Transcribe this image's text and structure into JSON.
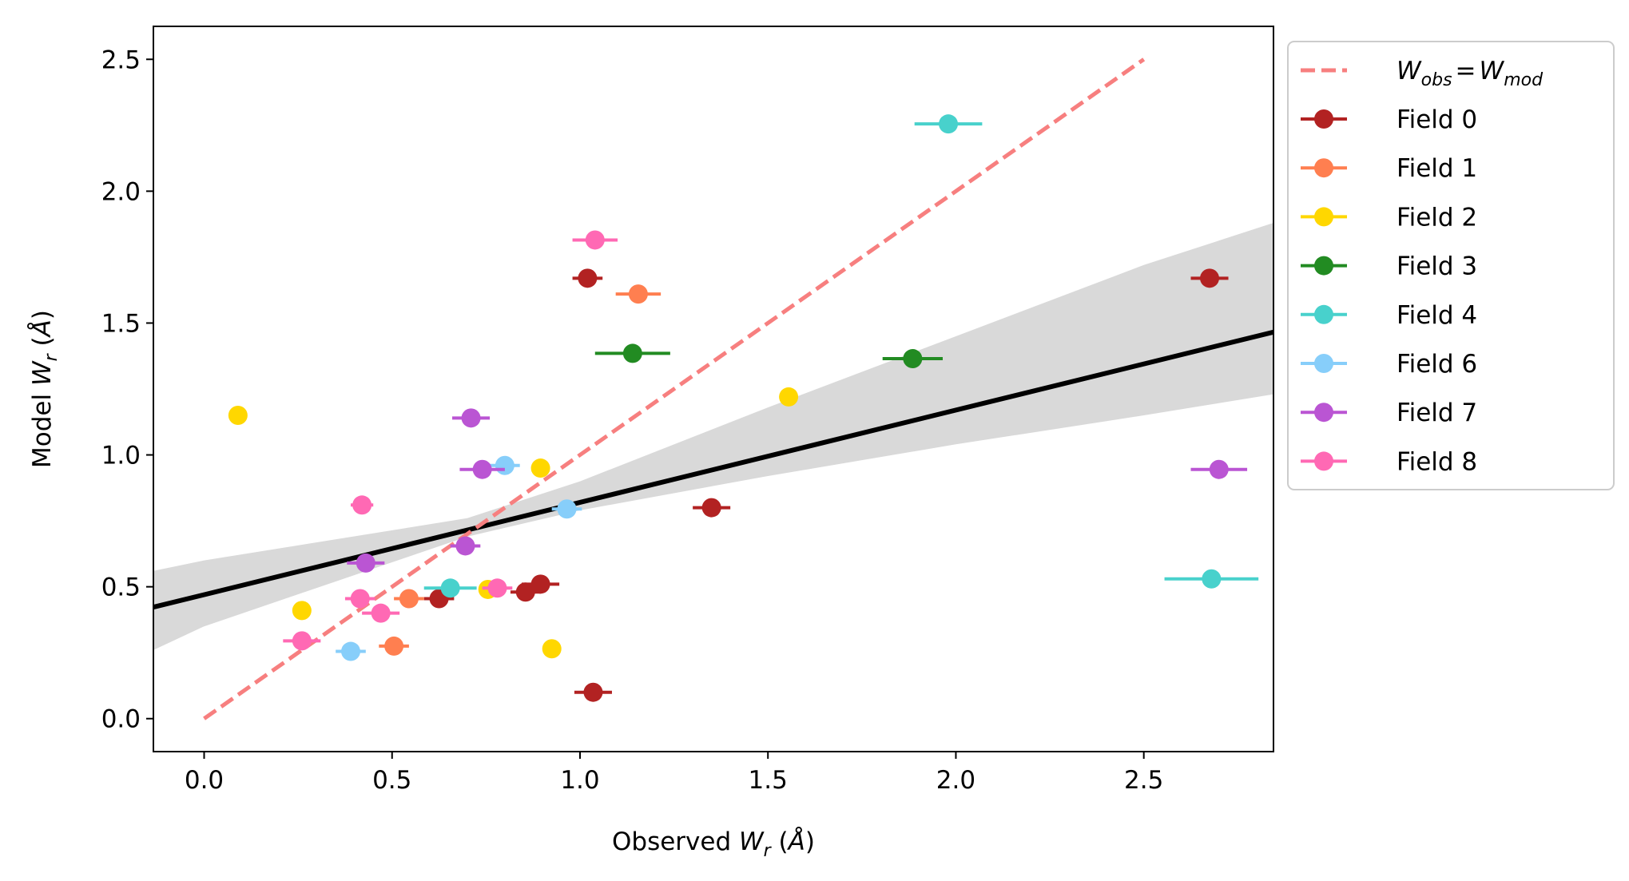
{
  "chart_data": {
    "type": "scatter",
    "title": "",
    "xlabel": "Observed W_r (Å)",
    "ylabel": "Model W_r (Å)",
    "xlim": [
      -0.135,
      2.845
    ],
    "ylim": [
      -0.125,
      2.625
    ],
    "xticks": [
      0.0,
      0.5,
      1.0,
      1.5,
      2.0,
      2.5
    ],
    "yticks": [
      0.0,
      0.5,
      1.0,
      1.5,
      2.0,
      2.5
    ],
    "xtick_labels": [
      "0.0",
      "0.5",
      "1.0",
      "1.5",
      "2.0",
      "2.5"
    ],
    "ytick_labels": [
      "0.0",
      "0.5",
      "1.0",
      "1.5",
      "2.0",
      "2.5"
    ],
    "grid": false,
    "legend_position": "outside-right",
    "identity_line": {
      "label_main1": "W",
      "label_sub1": "obs",
      "label_eq": "=",
      "label_main2": "W",
      "label_sub2": "mod",
      "x": [
        0.0,
        2.5
      ],
      "y": [
        0.0,
        2.5
      ],
      "color": "#f77f7f"
    },
    "fit": {
      "intercept": 0.47,
      "slope": 0.35,
      "color": "#000000",
      "band_upper": [
        [
          -0.135,
          0.56
        ],
        [
          0.0,
          0.6
        ],
        [
          0.7,
          0.76
        ],
        [
          1.0,
          0.9
        ],
        [
          1.5,
          1.18
        ],
        [
          2.0,
          1.45
        ],
        [
          2.5,
          1.72
        ],
        [
          2.845,
          1.88
        ]
      ],
      "band_lower": [
        [
          -0.135,
          0.26
        ],
        [
          0.0,
          0.35
        ],
        [
          0.7,
          0.69
        ],
        [
          1.0,
          0.79
        ],
        [
          1.5,
          0.92
        ],
        [
          2.0,
          1.04
        ],
        [
          2.5,
          1.15
        ],
        [
          2.845,
          1.23
        ]
      ],
      "band_color": "#d9d9d9"
    },
    "series": [
      {
        "name": "Field 0",
        "color": "#b22222",
        "points": [
          {
            "x": 1.02,
            "y": 1.67,
            "xerr": 0.04
          },
          {
            "x": 1.35,
            "y": 0.8,
            "xerr": 0.05
          },
          {
            "x": 0.625,
            "y": 0.455,
            "xerr": 0.04
          },
          {
            "x": 0.855,
            "y": 0.48,
            "xerr": 0.04
          },
          {
            "x": 0.895,
            "y": 0.51,
            "xerr": 0.05
          },
          {
            "x": 1.035,
            "y": 0.1,
            "xerr": 0.05
          },
          {
            "x": 2.675,
            "y": 1.67,
            "xerr": 0.05
          }
        ]
      },
      {
        "name": "Field 1",
        "color": "#ff7f50",
        "points": [
          {
            "x": 1.155,
            "y": 1.61,
            "xerr": 0.06
          },
          {
            "x": 0.545,
            "y": 0.455,
            "xerr": 0.04
          },
          {
            "x": 0.505,
            "y": 0.275,
            "xerr": 0.04
          }
        ]
      },
      {
        "name": "Field 2",
        "color": "#ffd700",
        "points": [
          {
            "x": 0.09,
            "y": 1.15,
            "xerr": 0.0
          },
          {
            "x": 1.555,
            "y": 1.22,
            "xerr": 0.0
          },
          {
            "x": 0.895,
            "y": 0.95,
            "xerr": 0.0
          },
          {
            "x": 0.26,
            "y": 0.41,
            "xerr": 0.0
          },
          {
            "x": 0.755,
            "y": 0.49,
            "xerr": 0.0
          },
          {
            "x": 0.925,
            "y": 0.265,
            "xerr": 0.0
          }
        ]
      },
      {
        "name": "Field 3",
        "color": "#228b22",
        "points": [
          {
            "x": 1.14,
            "y": 1.385,
            "xerr": 0.1
          },
          {
            "x": 1.885,
            "y": 1.365,
            "xerr": 0.08
          }
        ]
      },
      {
        "name": "Field 4",
        "color": "#48d1cc",
        "points": [
          {
            "x": 1.98,
            "y": 2.255,
            "xerr": 0.09
          },
          {
            "x": 0.655,
            "y": 0.495,
            "xerr": 0.07
          },
          {
            "x": 2.68,
            "y": 0.53,
            "xerr": 0.125
          }
        ]
      },
      {
        "name": "Field 6",
        "color": "#87cefa",
        "points": [
          {
            "x": 0.8,
            "y": 0.96,
            "xerr": 0.04
          },
          {
            "x": 0.965,
            "y": 0.795,
            "xerr": 0.04
          },
          {
            "x": 0.39,
            "y": 0.255,
            "xerr": 0.04
          }
        ]
      },
      {
        "name": "Field 7",
        "color": "#ba55d3",
        "points": [
          {
            "x": 0.71,
            "y": 1.14,
            "xerr": 0.05
          },
          {
            "x": 0.74,
            "y": 0.945,
            "xerr": 0.06
          },
          {
            "x": 0.695,
            "y": 0.655,
            "xerr": 0.04
          },
          {
            "x": 0.43,
            "y": 0.59,
            "xerr": 0.05
          },
          {
            "x": 2.7,
            "y": 0.945,
            "xerr": 0.075
          }
        ]
      },
      {
        "name": "Field 8",
        "color": "#ff69b4",
        "points": [
          {
            "x": 1.04,
            "y": 1.815,
            "xerr": 0.06
          },
          {
            "x": 0.42,
            "y": 0.81,
            "xerr": 0.03
          },
          {
            "x": 0.415,
            "y": 0.455,
            "xerr": 0.04
          },
          {
            "x": 0.47,
            "y": 0.4,
            "xerr": 0.05
          },
          {
            "x": 0.26,
            "y": 0.295,
            "xerr": 0.05
          },
          {
            "x": 0.78,
            "y": 0.495,
            "xerr": 0.04
          }
        ]
      }
    ]
  }
}
